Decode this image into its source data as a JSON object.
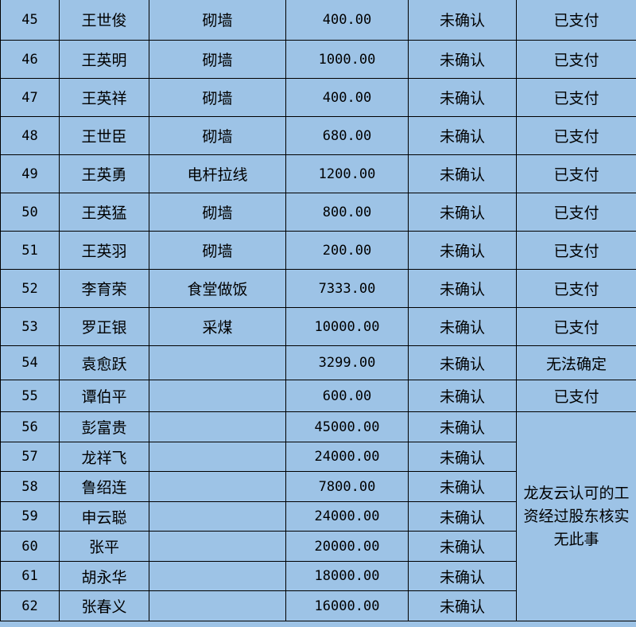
{
  "table": {
    "rows": [
      [
        "45",
        "王世俊",
        "砌墙",
        "400.00",
        "未确认",
        "已支付"
      ],
      [
        "46",
        "王英明",
        "砌墙",
        "1000.00",
        "未确认",
        "已支付"
      ],
      [
        "47",
        "王英祥",
        "砌墙",
        "400.00",
        "未确认",
        "已支付"
      ],
      [
        "48",
        "王世臣",
        "砌墙",
        "680.00",
        "未确认",
        "已支付"
      ],
      [
        "49",
        "王英勇",
        "电杆拉线",
        "1200.00",
        "未确认",
        "已支付"
      ],
      [
        "50",
        "王英猛",
        "砌墙",
        "800.00",
        "未确认",
        "已支付"
      ],
      [
        "51",
        "王英羽",
        "砌墙",
        "200.00",
        "未确认",
        "已支付"
      ],
      [
        "52",
        "李育荣",
        "食堂做饭",
        "7333.00",
        "未确认",
        "已支付"
      ],
      [
        "53",
        "罗正银",
        "采煤",
        "10000.00",
        "未确认",
        "已支付"
      ],
      [
        "54",
        "袁愈跃",
        null,
        "3299.00",
        "未确认",
        "无法确定"
      ],
      [
        "55",
        "谭伯平",
        null,
        "600.00",
        "未确认",
        "已支付"
      ],
      [
        "56",
        "彭富贵",
        null,
        "45000.00",
        "未确认"
      ],
      [
        "57",
        "龙祥飞",
        null,
        "24000.00",
        "未确认"
      ],
      [
        "58",
        "鲁绍连",
        null,
        "7800.00",
        "未确认"
      ],
      [
        "59",
        "申云聪",
        null,
        "24000.00",
        "未确认"
      ],
      [
        "60",
        "张平",
        null,
        "20000.00",
        "未确认"
      ],
      [
        "61",
        "胡永华",
        null,
        "18000.00",
        "未确认"
      ],
      [
        "62",
        "张春义",
        null,
        "16000.00",
        "未确认"
      ]
    ],
    "merged_note": "龙友云认可的工资经过股东核实无此事"
  }
}
